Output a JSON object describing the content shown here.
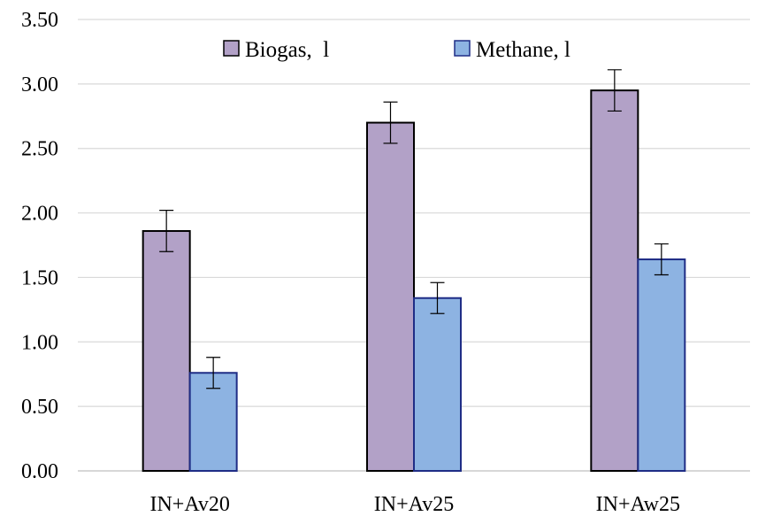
{
  "chart_data": {
    "type": "bar",
    "title": "",
    "xlabel": "",
    "ylabel": "",
    "categories": [
      "IN+Av20",
      "IN+Av25",
      "IN+Aw25"
    ],
    "ylim": [
      0,
      3.5
    ],
    "yticks": [
      "0.00",
      "0.50",
      "1.00",
      "1.50",
      "2.00",
      "2.50",
      "3.00",
      "3.50"
    ],
    "grid": true,
    "legend_position": "top",
    "series": [
      {
        "name": "Biogas,  l",
        "values": [
          1.86,
          2.7,
          2.95
        ],
        "errors": [
          0.16,
          0.16,
          0.16
        ],
        "color": "#b2a1c7",
        "border": "#000000"
      },
      {
        "name": "Methane, l",
        "values": [
          0.76,
          1.34,
          1.64
        ],
        "errors": [
          0.12,
          0.12,
          0.12
        ],
        "color": "#8db3e2",
        "border": "#1f2d86"
      }
    ]
  }
}
